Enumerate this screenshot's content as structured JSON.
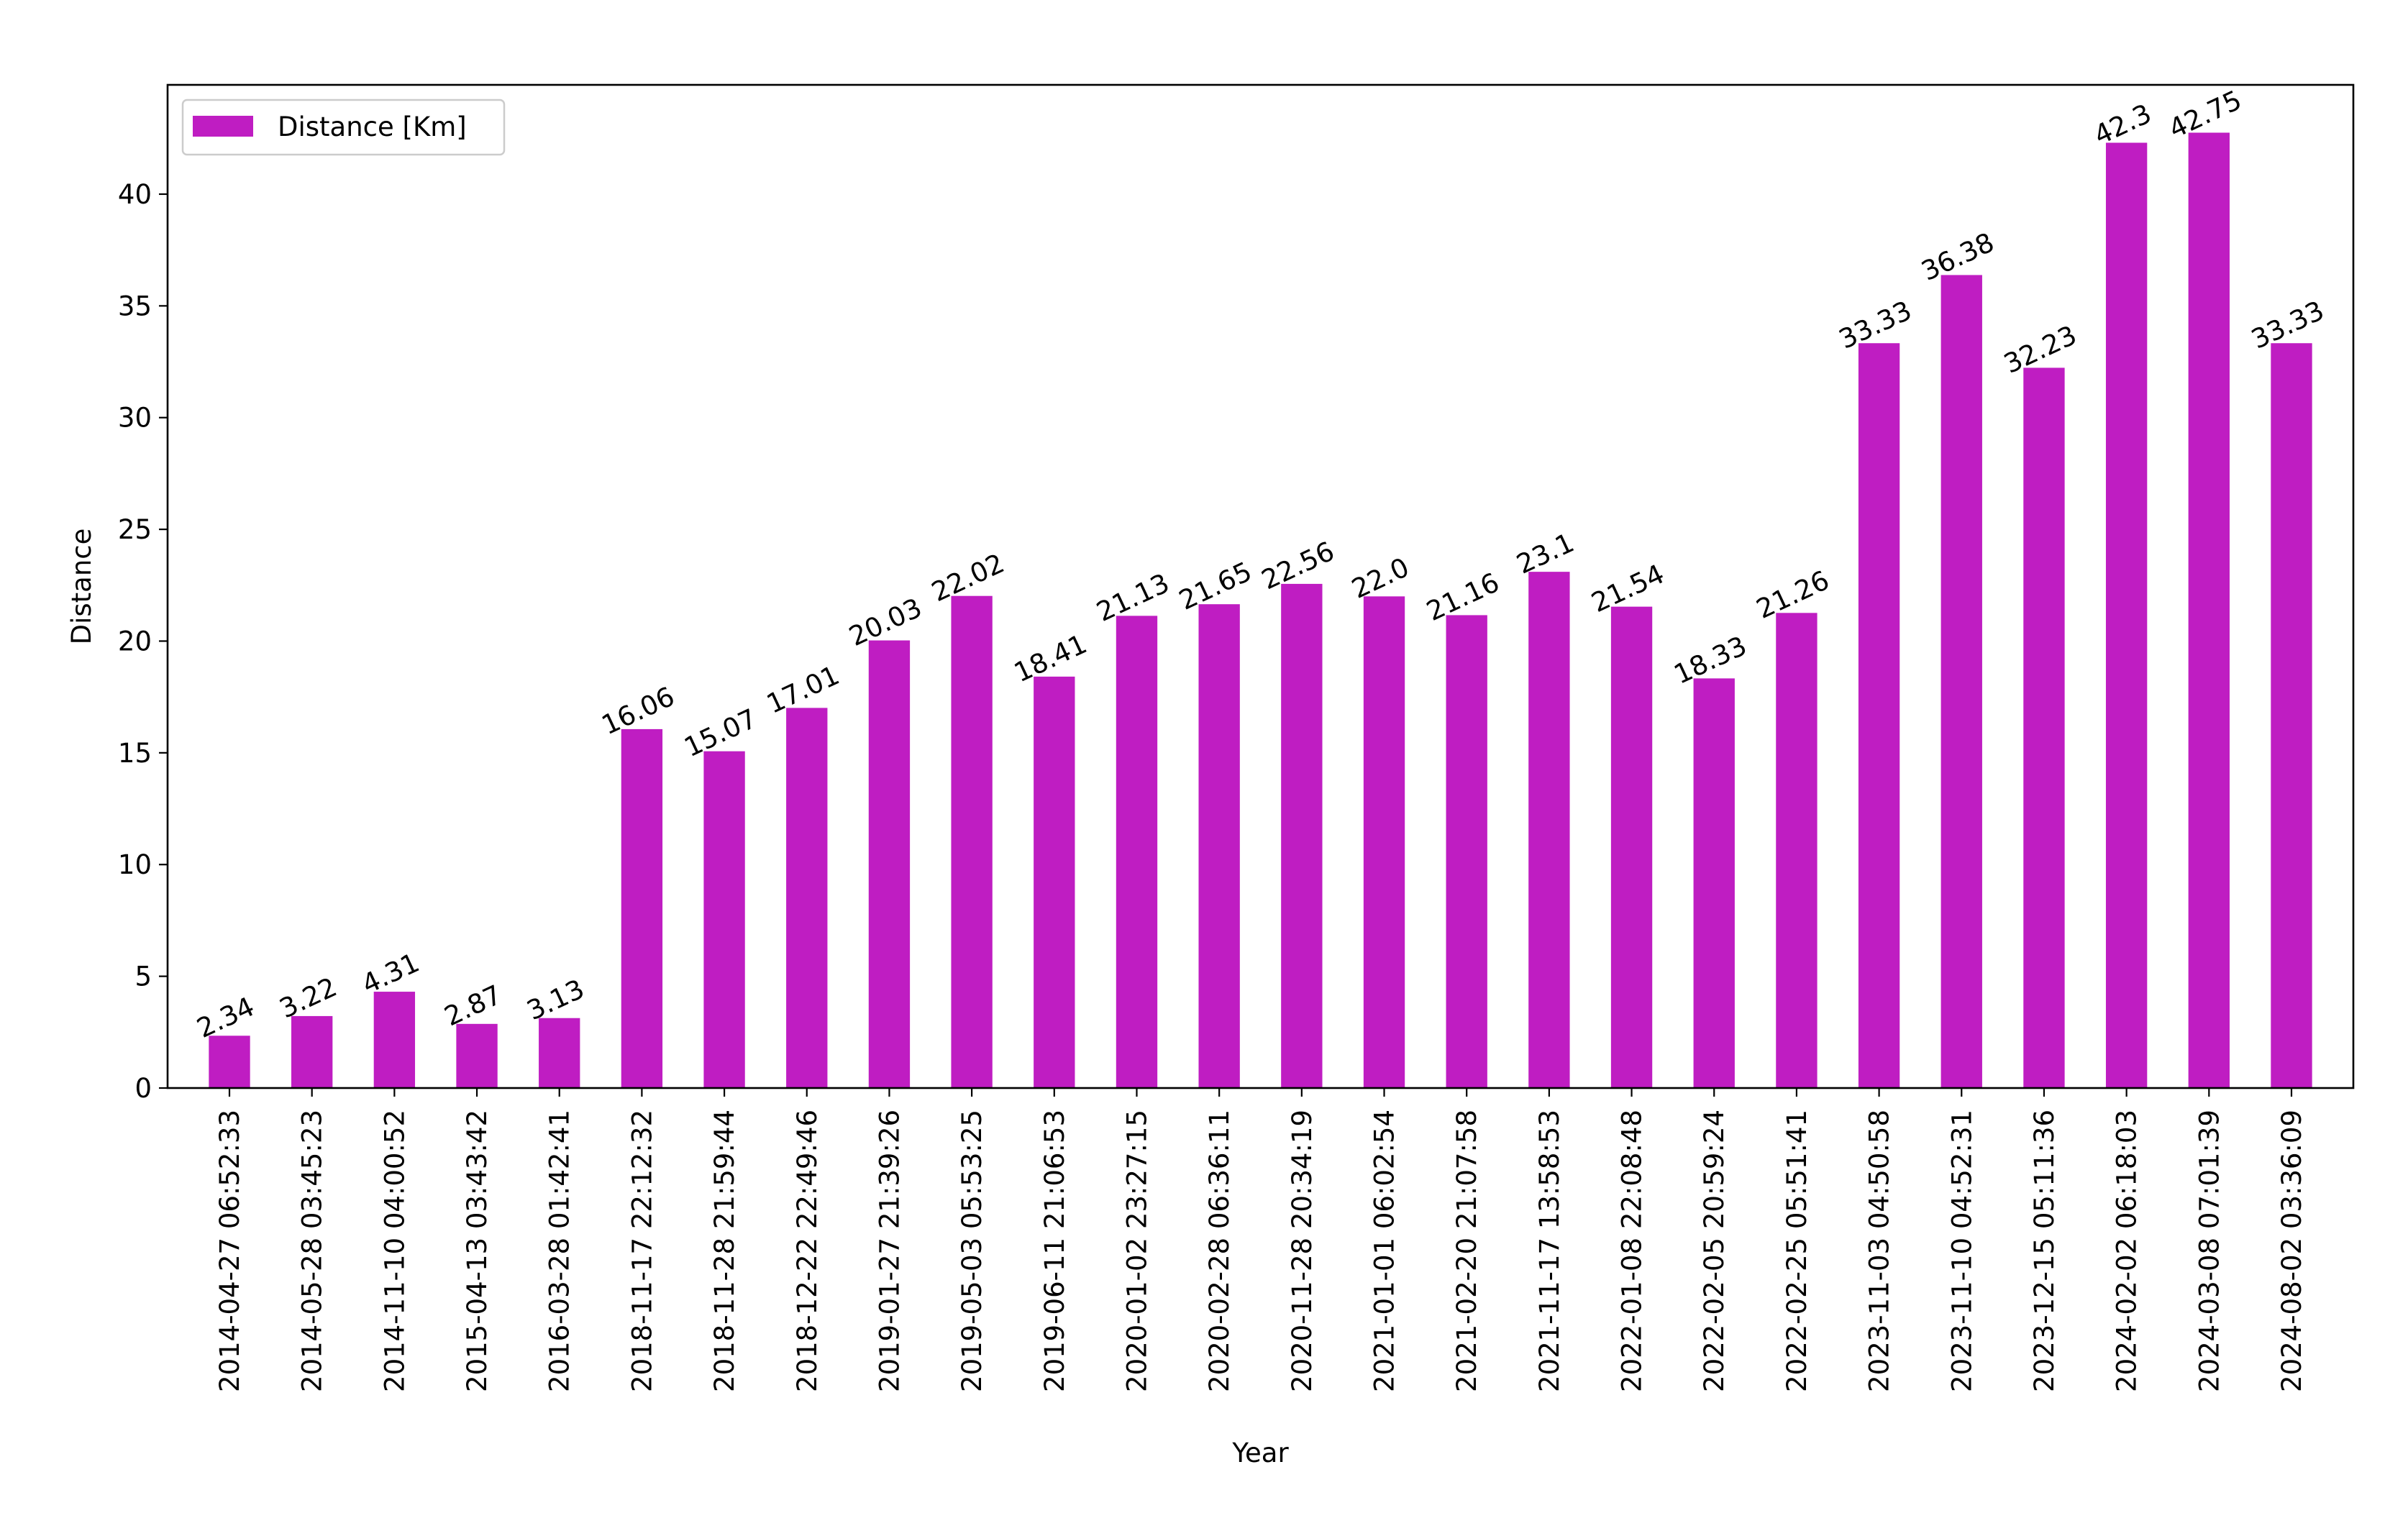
{
  "chart_data": {
    "type": "bar",
    "title": "",
    "xlabel": "Year",
    "ylabel": "Distance",
    "ylim": [
      0,
      44.89
    ],
    "yticks": [
      0,
      5,
      10,
      15,
      20,
      25,
      30,
      35,
      40
    ],
    "grid": false,
    "legend_position": "top-left",
    "categories": [
      "2014-04-27 06:52:33",
      "2014-05-28 03:45:23",
      "2014-11-10 04:00:52",
      "2015-04-13 03:43:42",
      "2016-03-28 01:42:41",
      "2018-11-17 22:12:32",
      "2018-11-28 21:59:44",
      "2018-12-22 22:49:46",
      "2019-01-27 21:39:26",
      "2019-05-03 05:53:25",
      "2019-06-11 21:06:53",
      "2020-01-02 23:27:15",
      "2020-02-28 06:36:11",
      "2020-11-28 20:34:19",
      "2021-01-01 06:02:54",
      "2021-02-20 21:07:58",
      "2021-11-17 13:58:53",
      "2022-01-08 22:08:48",
      "2022-02-05 20:59:24",
      "2022-02-25 05:51:41",
      "2023-11-03 04:50:58",
      "2023-11-10 04:52:31",
      "2023-12-15 05:11:36",
      "2024-02-02 06:18:03",
      "2024-03-08 07:01:39",
      "2024-08-02 03:36:09"
    ],
    "series": [
      {
        "name": "Distance [Km]",
        "color": "#bf1dc2",
        "values": [
          2.34,
          3.22,
          4.31,
          2.87,
          3.13,
          16.06,
          15.07,
          17.01,
          20.03,
          22.02,
          18.41,
          21.13,
          21.65,
          22.56,
          22.0,
          21.16,
          23.1,
          21.54,
          18.33,
          21.26,
          33.33,
          36.38,
          32.23,
          42.3,
          42.75,
          33.33
        ],
        "labels": [
          "2.34",
          "3.22",
          "4.31",
          "2.87",
          "3.13",
          "16.06",
          "15.07",
          "17.01",
          "20.03",
          "22.02",
          "18.41",
          "21.13",
          "21.65",
          "22.56",
          "22.0",
          "21.16",
          "23.1",
          "21.54",
          "18.33",
          "21.26",
          "33.33",
          "36.38",
          "32.23",
          "42.3",
          "42.75",
          "33.33"
        ]
      }
    ]
  }
}
